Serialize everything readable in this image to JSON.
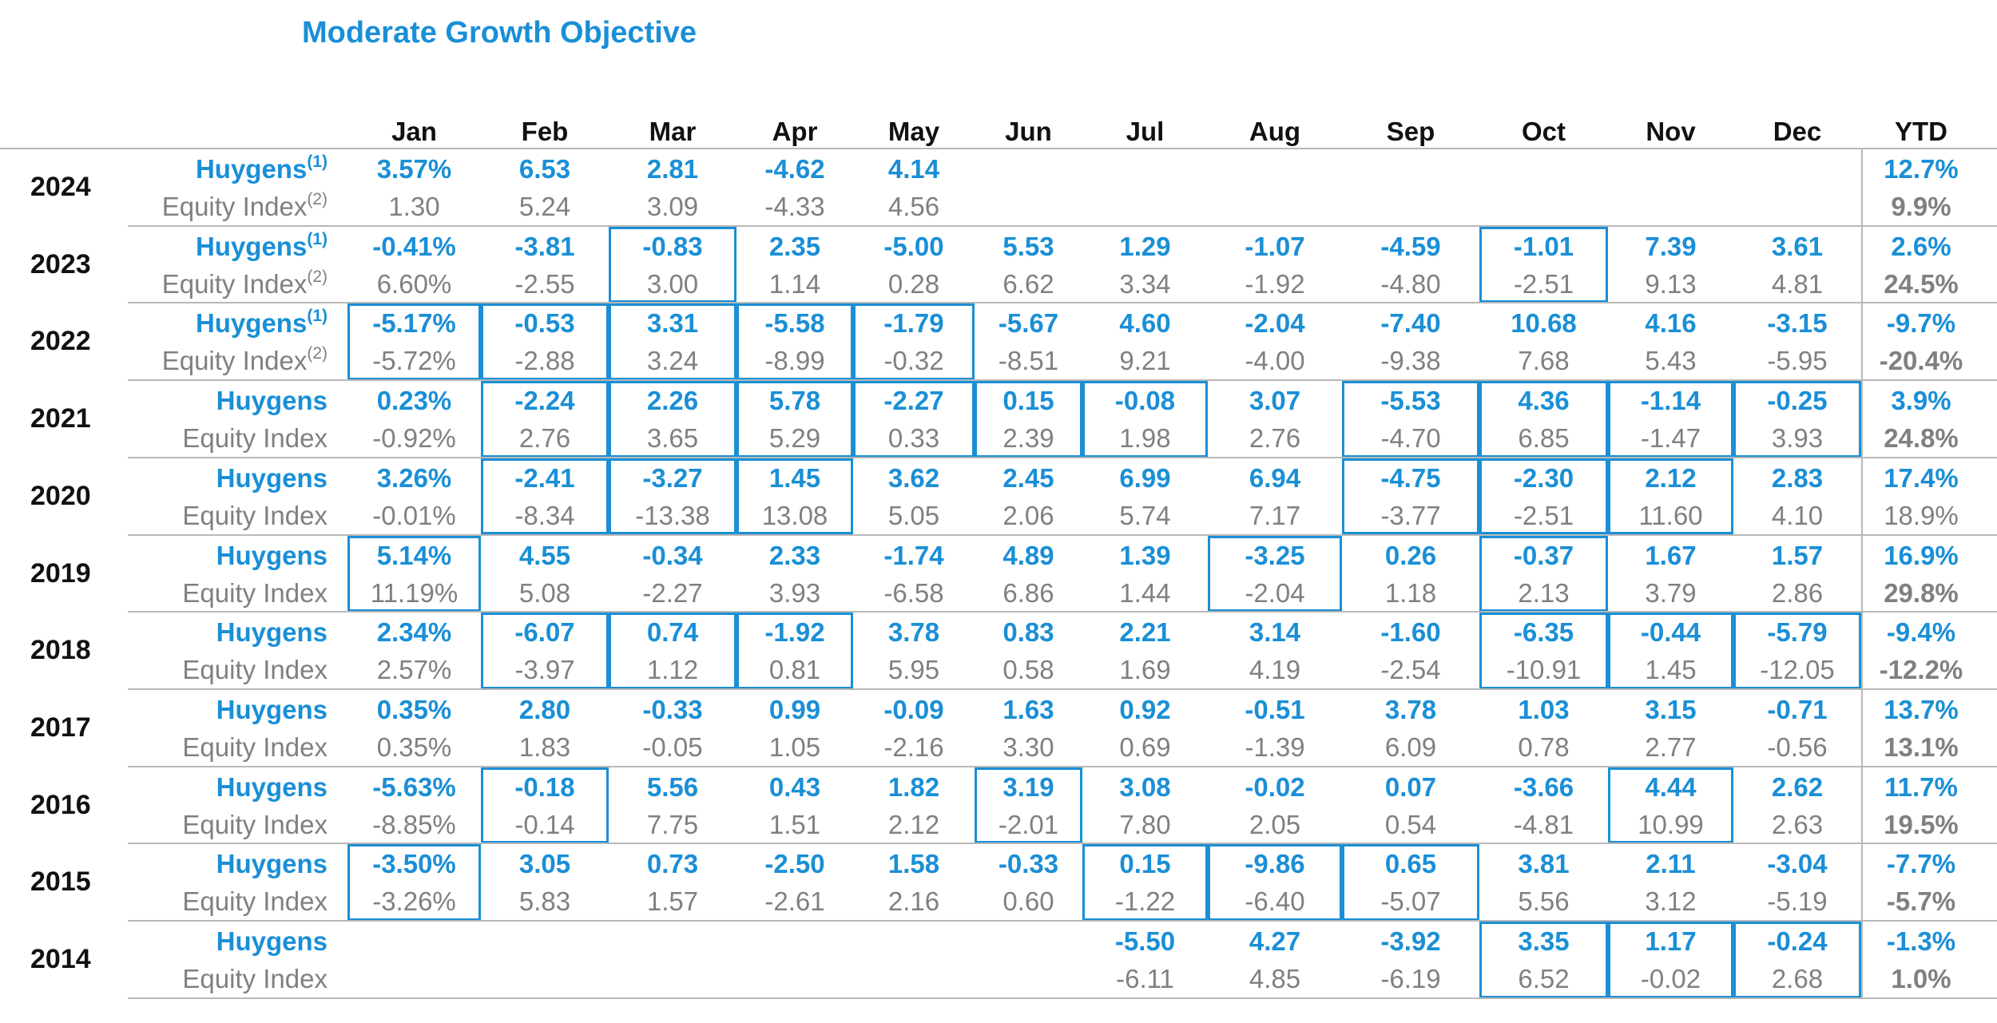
{
  "title": "Moderate Growth Objective",
  "colors": {
    "huygens": "#1a8fd6",
    "index": "#808080",
    "box": "#1a8fd6",
    "grid": "#b8b8b8"
  },
  "chart_data": {
    "type": "table",
    "title": "Moderate Growth Objective",
    "columns": [
      "Jan",
      "Feb",
      "Mar",
      "Apr",
      "May",
      "Jun",
      "Jul",
      "Aug",
      "Sep",
      "Oct",
      "Nov",
      "Dec",
      "YTD"
    ],
    "rows": [
      {
        "year": "2024",
        "huygens_label": "Huygens",
        "huygens_note": "(1)",
        "index_label": "Equity Index",
        "index_note": "(2)",
        "huygens": [
          "3.57%",
          "6.53",
          "2.81",
          "-4.62",
          "4.14",
          "",
          "",
          "",
          "",
          "",
          "",
          "",
          "12.7%"
        ],
        "index": [
          "1.30",
          "5.24",
          "3.09",
          "-4.33",
          "4.56",
          "",
          "",
          "",
          "",
          "",
          "",
          "",
          "9.9%"
        ],
        "index_ytd_bold": true,
        "boxed": []
      },
      {
        "year": "2023",
        "huygens_label": "Huygens",
        "huygens_note": "(1)",
        "index_label": "Equity Index",
        "index_note": "(2)",
        "huygens": [
          "-0.41%",
          "-3.81",
          "-0.83",
          "2.35",
          "-5.00",
          "5.53",
          "1.29",
          "-1.07",
          "-4.59",
          "-1.01",
          "7.39",
          "3.61",
          "2.6%"
        ],
        "index": [
          "6.60%",
          "-2.55",
          "3.00",
          "1.14",
          "0.28",
          "6.62",
          "3.34",
          "-1.92",
          "-4.80",
          "-2.51",
          "9.13",
          "4.81",
          "24.5%"
        ],
        "index_ytd_bold": true,
        "boxed": [
          2,
          9
        ]
      },
      {
        "year": "2022",
        "huygens_label": "Huygens",
        "huygens_note": "(1)",
        "index_label": "Equity Index",
        "index_note": "(2)",
        "huygens": [
          "-5.17%",
          "-0.53",
          "3.31",
          "-5.58",
          "-1.79",
          "-5.67",
          "4.60",
          "-2.04",
          "-7.40",
          "10.68",
          "4.16",
          "-3.15",
          "-9.7%"
        ],
        "index": [
          "-5.72%",
          "-2.88",
          "3.24",
          "-8.99",
          "-0.32",
          "-8.51",
          "9.21",
          "-4.00",
          "-9.38",
          "7.68",
          "5.43",
          "-5.95",
          "-20.4%"
        ],
        "index_ytd_bold": true,
        "boxed": [
          0,
          1,
          2,
          3,
          4
        ]
      },
      {
        "year": "2021",
        "huygens_label": "Huygens",
        "huygens_note": "",
        "index_label": "Equity Index",
        "index_note": "",
        "huygens": [
          "0.23%",
          "-2.24",
          "2.26",
          "5.78",
          "-2.27",
          "0.15",
          "-0.08",
          "3.07",
          "-5.53",
          "4.36",
          "-1.14",
          "-0.25",
          "3.9%"
        ],
        "index": [
          "-0.92%",
          "2.76",
          "3.65",
          "5.29",
          "0.33",
          "2.39",
          "1.98",
          "2.76",
          "-4.70",
          "6.85",
          "-1.47",
          "3.93",
          "24.8%"
        ],
        "index_ytd_bold": true,
        "boxed": [
          1,
          2,
          3,
          4,
          5,
          6,
          8,
          9,
          10,
          11
        ]
      },
      {
        "year": "2020",
        "huygens_label": "Huygens",
        "huygens_note": "",
        "index_label": "Equity Index",
        "index_note": "",
        "huygens": [
          "3.26%",
          "-2.41",
          "-3.27",
          "1.45",
          "3.62",
          "2.45",
          "6.99",
          "6.94",
          "-4.75",
          "-2.30",
          "2.12",
          "2.83",
          "17.4%"
        ],
        "index": [
          "-0.01%",
          "-8.34",
          "-13.38",
          "13.08",
          "5.05",
          "2.06",
          "5.74",
          "7.17",
          "-3.77",
          "-2.51",
          "11.60",
          "4.10",
          "18.9%"
        ],
        "index_ytd_bold": false,
        "boxed": [
          1,
          2,
          3,
          8,
          9,
          10
        ]
      },
      {
        "year": "2019",
        "huygens_label": "Huygens",
        "huygens_note": "",
        "index_label": "Equity Index",
        "index_note": "",
        "huygens": [
          "5.14%",
          "4.55",
          "-0.34",
          "2.33",
          "-1.74",
          "4.89",
          "1.39",
          "-3.25",
          "0.26",
          "-0.37",
          "1.67",
          "1.57",
          "16.9%"
        ],
        "index": [
          "11.19%",
          "5.08",
          "-2.27",
          "3.93",
          "-6.58",
          "6.86",
          "1.44",
          "-2.04",
          "1.18",
          "2.13",
          "3.79",
          "2.86",
          "29.8%"
        ],
        "index_ytd_bold": true,
        "boxed": [
          0,
          7,
          9
        ]
      },
      {
        "year": "2018",
        "huygens_label": "Huygens",
        "huygens_note": "",
        "index_label": "Equity Index",
        "index_note": "",
        "huygens": [
          "2.34%",
          "-6.07",
          "0.74",
          "-1.92",
          "3.78",
          "0.83",
          "2.21",
          "3.14",
          "-1.60",
          "-6.35",
          "-0.44",
          "-5.79",
          "-9.4%"
        ],
        "index": [
          "2.57%",
          "-3.97",
          "1.12",
          "0.81",
          "5.95",
          "0.58",
          "1.69",
          "4.19",
          "-2.54",
          "-10.91",
          "1.45",
          "-12.05",
          "-12.2%"
        ],
        "index_ytd_bold": true,
        "boxed": [
          1,
          2,
          3,
          9,
          10,
          11
        ]
      },
      {
        "year": "2017",
        "huygens_label": "Huygens",
        "huygens_note": "",
        "index_label": "Equity Index",
        "index_note": "",
        "huygens": [
          "0.35%",
          "2.80",
          "-0.33",
          "0.99",
          "-0.09",
          "1.63",
          "0.92",
          "-0.51",
          "3.78",
          "1.03",
          "3.15",
          "-0.71",
          "13.7%"
        ],
        "index": [
          "0.35%",
          "1.83",
          "-0.05",
          "1.05",
          "-2.16",
          "3.30",
          "0.69",
          "-1.39",
          "6.09",
          "0.78",
          "2.77",
          "-0.56",
          "13.1%"
        ],
        "index_ytd_bold": true,
        "boxed": []
      },
      {
        "year": "2016",
        "huygens_label": "Huygens",
        "huygens_note": "",
        "index_label": "Equity Index",
        "index_note": "",
        "huygens": [
          "-5.63%",
          "-0.18",
          "5.56",
          "0.43",
          "1.82",
          "3.19",
          "3.08",
          "-0.02",
          "0.07",
          "-3.66",
          "4.44",
          "2.62",
          "11.7%"
        ],
        "index": [
          "-8.85%",
          "-0.14",
          "7.75",
          "1.51",
          "2.12",
          "-2.01",
          "7.80",
          "2.05",
          "0.54",
          "-4.81",
          "10.99",
          "2.63",
          "19.5%"
        ],
        "index_ytd_bold": true,
        "boxed": [
          1,
          5,
          10
        ]
      },
      {
        "year": "2015",
        "huygens_label": "Huygens",
        "huygens_note": "",
        "index_label": "Equity Index",
        "index_note": "",
        "huygens": [
          "-3.50%",
          "3.05",
          "0.73",
          "-2.50",
          "1.58",
          "-0.33",
          "0.15",
          "-9.86",
          "0.65",
          "3.81",
          "2.11",
          "-3.04",
          "-7.7%"
        ],
        "index": [
          "-3.26%",
          "5.83",
          "1.57",
          "-2.61",
          "2.16",
          "0.60",
          "-1.22",
          "-6.40",
          "-5.07",
          "5.56",
          "3.12",
          "-5.19",
          "-5.7%"
        ],
        "index_ytd_bold": true,
        "boxed": [
          0,
          6,
          7,
          8
        ]
      },
      {
        "year": "2014",
        "huygens_label": "Huygens",
        "huygens_note": "",
        "index_label": "Equity Index",
        "index_note": "",
        "huygens": [
          "",
          "",
          "",
          "",
          "",
          "",
          "-5.50",
          "4.27",
          "-3.92",
          "3.35",
          "1.17",
          "-0.24",
          "-1.3%"
        ],
        "index": [
          "",
          "",
          "",
          "",
          "",
          "",
          "-6.11",
          "4.85",
          "-6.19",
          "6.52",
          "-0.02",
          "2.68",
          "1.0%"
        ],
        "index_ytd_bold": true,
        "boxed": [
          9,
          10,
          11
        ]
      }
    ]
  }
}
